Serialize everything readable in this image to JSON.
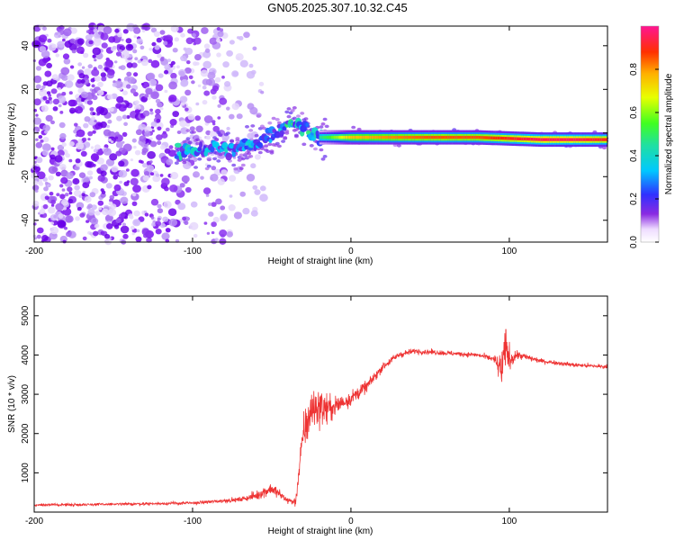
{
  "title": "GN05.2025.307.10.32.C45",
  "chart_data": [
    {
      "type": "heatmap",
      "name": "spectrogram",
      "xlabel": "Height of straight line (km)",
      "ylabel": "Frequency (Hz)",
      "xlim": [
        -200,
        162
      ],
      "ylim": [
        -50,
        49
      ],
      "x_ticks": [
        -200,
        -100,
        0,
        100
      ],
      "x_tick_labels": [
        "-200",
        "-100",
        "0",
        "100"
      ],
      "y_ticks": [
        -40,
        -20,
        0,
        20,
        40
      ],
      "y_tick_labels": [
        "-40",
        "-20",
        "0",
        "20",
        "40"
      ],
      "colorbar": {
        "label": "Normalized spectral amplitude",
        "range": [
          0,
          1
        ],
        "ticks": [
          0,
          0.2,
          0.4,
          0.6,
          0.8
        ],
        "tick_labels": [
          "0.0",
          "0.2",
          "0.4",
          "0.6",
          "0.8"
        ]
      },
      "signal_track": [
        {
          "x": -93,
          "freq": -8,
          "amp": 0.35
        },
        {
          "x": -85,
          "freq": -6,
          "amp": 0.3
        },
        {
          "x": -75,
          "freq": -8,
          "amp": 0.32
        },
        {
          "x": -65,
          "freq": -6,
          "amp": 0.3
        },
        {
          "x": -55,
          "freq": -3,
          "amp": 0.35
        },
        {
          "x": -45,
          "freq": 1,
          "amp": 0.35
        },
        {
          "x": -38,
          "freq": 5,
          "amp": 0.4
        },
        {
          "x": -30,
          "freq": 3,
          "amp": 0.35
        },
        {
          "x": -20,
          "freq": -2,
          "amp": 0.45
        },
        {
          "x": -10,
          "freq": -2,
          "amp": 0.6
        },
        {
          "x": 0,
          "freq": -2,
          "amp": 0.75
        },
        {
          "x": 20,
          "freq": -2,
          "amp": 0.8
        },
        {
          "x": 50,
          "freq": -2,
          "amp": 0.85
        },
        {
          "x": 80,
          "freq": -2,
          "amp": 0.85
        },
        {
          "x": 100,
          "freq": -2.5,
          "amp": 0.9
        },
        {
          "x": 120,
          "freq": -3,
          "amp": 0.95
        },
        {
          "x": 140,
          "freq": -3,
          "amp": 0.95
        },
        {
          "x": 162,
          "freq": -3,
          "amp": 0.9
        }
      ]
    },
    {
      "type": "line",
      "name": "snr",
      "xlabel": "Height of straight line (km)",
      "ylabel": "SNR (10 * v/v)",
      "xlim": [
        -200,
        162
      ],
      "ylim": [
        0,
        5500
      ],
      "x_ticks": [
        -200,
        -100,
        0,
        100
      ],
      "x_tick_labels": [
        "-200",
        "-100",
        "0",
        "100"
      ],
      "y_ticks": [
        1000,
        2000,
        3000,
        4000,
        5000
      ],
      "y_tick_labels": [
        "1000",
        "2000",
        "3000",
        "4000",
        "5000"
      ],
      "color": "#ee3333",
      "series": [
        {
          "name": "SNR",
          "x": [
            -200,
            -150,
            -100,
            -70,
            -60,
            -50,
            -40,
            -35,
            -30,
            -25,
            -20,
            -15,
            -10,
            -5,
            0,
            10,
            20,
            30,
            40,
            60,
            80,
            90,
            95,
            98,
            100,
            105,
            120,
            140,
            162
          ],
          "y": [
            180,
            200,
            230,
            320,
            420,
            600,
            300,
            250,
            2000,
            2600,
            2700,
            2600,
            2700,
            2800,
            2900,
            3200,
            3700,
            4000,
            4100,
            4050,
            4000,
            3900,
            3600,
            4200,
            3900,
            4000,
            3850,
            3750,
            3700
          ],
          "amplitude": [
            60,
            60,
            70,
            100,
            200,
            300,
            150,
            200,
            900,
            1000,
            900,
            700,
            500,
            400,
            350,
            250,
            200,
            150,
            120,
            110,
            100,
            150,
            800,
            1000,
            600,
            200,
            100,
            100,
            100
          ]
        }
      ]
    }
  ]
}
